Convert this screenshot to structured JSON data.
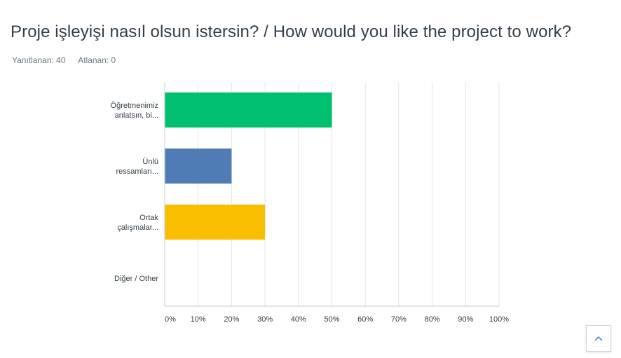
{
  "question": {
    "title": "Proje işleyişi nasıl olsun istersin? / How would you like the project to work?"
  },
  "stats": {
    "answered": "Yanıtlanan: 40",
    "skipped": "Atlanan: 0"
  },
  "chart_data": {
    "type": "bar",
    "orientation": "horizontal",
    "categories": [
      [
        "Öğretmenimiz",
        "anlatsın, bi..."
      ],
      [
        "Ünlü",
        "ressamları..."
      ],
      [
        "Ortak",
        "çalışmalar..."
      ],
      [
        "Diğer / Other"
      ]
    ],
    "values": [
      50,
      20,
      30,
      0
    ],
    "colors": [
      "#00bf6f",
      "#507cb6",
      "#f9be00",
      "#6bc8cd"
    ],
    "xlim": [
      0,
      100
    ],
    "x_ticks": [
      "0%",
      "10%",
      "20%",
      "30%",
      "40%",
      "50%",
      "60%",
      "70%",
      "80%",
      "90%",
      "100%"
    ],
    "grid": true
  },
  "ui": {
    "scroll_top_icon": "chevron-up-icon",
    "accent": "#507cb6"
  }
}
